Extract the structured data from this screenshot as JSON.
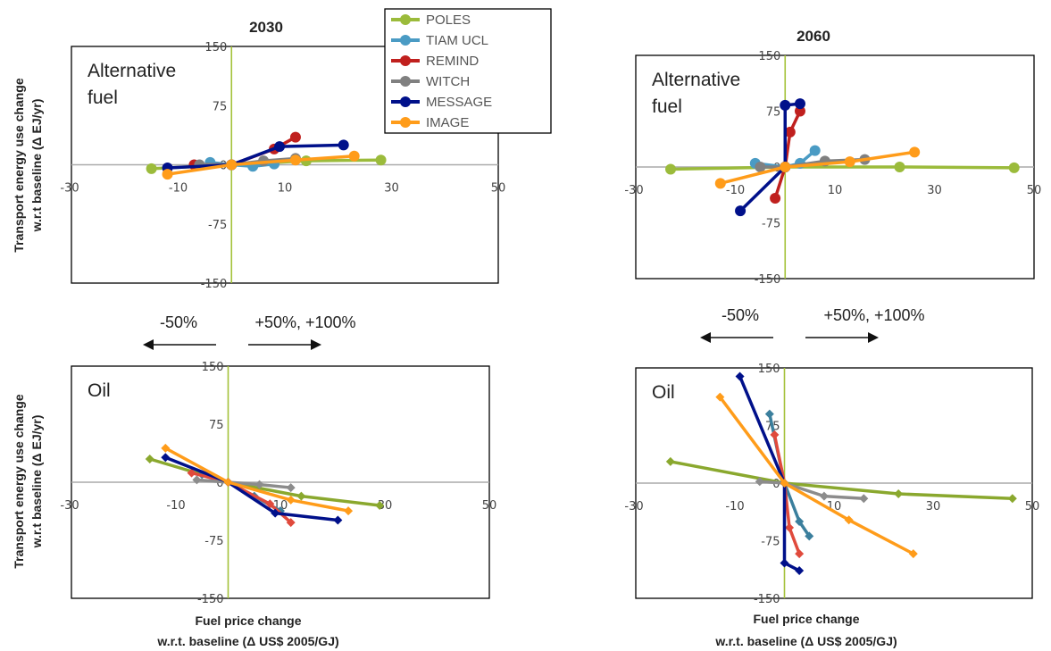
{
  "figure": {
    "ylabel_line1": "Transport energy use change",
    "ylabel_line2": "w.r.t baseline (Δ EJ/yr)",
    "xlabel_line1": "Fuel price change",
    "xlabel_line2": "w.r.t. baseline (Δ US$ 2005/GJ)",
    "arrow_left": "-50%",
    "arrow_right": "+50%, +100%"
  },
  "legend": [
    {
      "name": "POLES",
      "color": "#9bbb3b"
    },
    {
      "name": "TIAM UCL",
      "color": "#4a9bc4"
    },
    {
      "name": "REMIND",
      "color": "#c0201e"
    },
    {
      "name": "WITCH",
      "color": "#808080"
    },
    {
      "name": "MESSAGE",
      "color": "#00108a"
    },
    {
      "name": "IMAGE",
      "color": "#ff9c1a"
    }
  ],
  "colors_oil": {
    "POLES": "#8aa82e",
    "TIAM UCL": "#3b7f9d",
    "REMIND": "#e04a3c",
    "WITCH": "#8c8c8c",
    "MESSAGE": "#00108a",
    "IMAGE": "#ff9c1a"
  },
  "chart_data": [
    {
      "id": "c2030alt",
      "type": "line",
      "title": "2030",
      "panel_label": "Alternative fuel",
      "xlim": [
        -30,
        50
      ],
      "ylim": [
        -150,
        150
      ],
      "xticks": [
        "-30",
        "-10",
        "10",
        "30",
        "50"
      ],
      "yticks": [
        "150",
        "75",
        "0",
        "-75",
        "-150"
      ],
      "marker": "circle",
      "series": [
        {
          "name": "POLES",
          "points": [
            [
              -15,
              -5
            ],
            [
              0,
              0
            ],
            [
              14,
              5
            ],
            [
              28,
              6
            ]
          ]
        },
        {
          "name": "TIAM UCL",
          "points": [
            [
              -4,
              3
            ],
            [
              0,
              0
            ],
            [
              4,
              -2
            ],
            [
              8,
              1
            ]
          ]
        },
        {
          "name": "REMIND",
          "points": [
            [
              -7,
              0
            ],
            [
              0,
              0
            ],
            [
              8,
              20
            ],
            [
              12,
              35
            ]
          ]
        },
        {
          "name": "WITCH",
          "points": [
            [
              -6,
              0
            ],
            [
              0,
              0
            ],
            [
              6,
              5
            ],
            [
              12,
              8
            ]
          ]
        },
        {
          "name": "MESSAGE",
          "points": [
            [
              -12,
              -4
            ],
            [
              0,
              0
            ],
            [
              9,
              23
            ],
            [
              21,
              25
            ]
          ]
        },
        {
          "name": "IMAGE",
          "points": [
            [
              -12,
              -12
            ],
            [
              0,
              0
            ],
            [
              12,
              6
            ],
            [
              23,
              11
            ]
          ]
        }
      ]
    },
    {
      "id": "c2060alt",
      "type": "line",
      "title": "2060",
      "panel_label": "Alternative fuel",
      "xlim": [
        -30,
        50
      ],
      "ylim": [
        -150,
        150
      ],
      "xticks": [
        "-30",
        "-10",
        "10",
        "30",
        "50"
      ],
      "yticks": [
        "150",
        "75",
        "0",
        "-75",
        "-150"
      ],
      "marker": "circle",
      "series": [
        {
          "name": "POLES",
          "points": [
            [
              -23,
              -3
            ],
            [
              0,
              0
            ],
            [
              23,
              0
            ],
            [
              46,
              -1
            ]
          ]
        },
        {
          "name": "TIAM UCL",
          "points": [
            [
              -6,
              5
            ],
            [
              0,
              0
            ],
            [
              3,
              5
            ],
            [
              6,
              22
            ]
          ]
        },
        {
          "name": "REMIND",
          "points": [
            [
              -2,
              -42
            ],
            [
              0,
              0
            ],
            [
              1,
              47
            ],
            [
              3,
              75
            ]
          ]
        },
        {
          "name": "WITCH",
          "points": [
            [
              -5,
              0
            ],
            [
              0,
              0
            ],
            [
              8,
              8
            ],
            [
              16,
              10
            ]
          ]
        },
        {
          "name": "MESSAGE",
          "points": [
            [
              -9,
              -59
            ],
            [
              0,
              0
            ],
            [
              0,
              83
            ],
            [
              3,
              85
            ]
          ]
        },
        {
          "name": "IMAGE",
          "points": [
            [
              -13,
              -22
            ],
            [
              0,
              0
            ],
            [
              13,
              7
            ],
            [
              26,
              20
            ]
          ]
        }
      ]
    },
    {
      "id": "c2030oil",
      "type": "line",
      "title": "",
      "panel_label": "Oil",
      "xlim": [
        -30,
        50
      ],
      "ylim": [
        -150,
        150
      ],
      "xticks": [
        "-30",
        "-10",
        "10",
        "30",
        "50"
      ],
      "yticks": [
        "150",
        "75",
        "0",
        "-75",
        "-150"
      ],
      "marker": "diamond",
      "series": [
        {
          "name": "POLES",
          "points": [
            [
              -15,
              30
            ],
            [
              0,
              0
            ],
            [
              14,
              -18
            ],
            [
              29,
              -30
            ]
          ]
        },
        {
          "name": "TIAM UCL",
          "points": [
            [
              -5,
              10
            ],
            [
              0,
              0
            ],
            [
              5,
              -18
            ],
            [
              10,
              -37
            ]
          ]
        },
        {
          "name": "REMIND",
          "points": [
            [
              -7,
              12
            ],
            [
              0,
              0
            ],
            [
              8,
              -28
            ],
            [
              12,
              -52
            ]
          ]
        },
        {
          "name": "WITCH",
          "points": [
            [
              -6,
              3
            ],
            [
              0,
              0
            ],
            [
              6,
              -3
            ],
            [
              12,
              -7
            ]
          ]
        },
        {
          "name": "MESSAGE",
          "points": [
            [
              -12,
              32
            ],
            [
              0,
              0
            ],
            [
              9,
              -40
            ],
            [
              21,
              -49
            ]
          ]
        },
        {
          "name": "IMAGE",
          "points": [
            [
              -12,
              44
            ],
            [
              0,
              0
            ],
            [
              12,
              -23
            ],
            [
              23,
              -37
            ]
          ]
        }
      ]
    },
    {
      "id": "c2060oil",
      "type": "line",
      "title": "",
      "panel_label": "Oil",
      "xlim": [
        -30,
        50
      ],
      "ylim": [
        -150,
        150
      ],
      "xticks": [
        "-30",
        "-10",
        "10",
        "30",
        "50"
      ],
      "yticks": [
        "150",
        "75",
        "0",
        "-75",
        "-150"
      ],
      "marker": "diamond",
      "series": [
        {
          "name": "POLES",
          "points": [
            [
              -23,
              28
            ],
            [
              0,
              0
            ],
            [
              23,
              -14
            ],
            [
              46,
              -20
            ]
          ]
        },
        {
          "name": "TIAM UCL",
          "points": [
            [
              -3,
              90
            ],
            [
              0,
              0
            ],
            [
              3,
              -50
            ],
            [
              5,
              -69
            ]
          ]
        },
        {
          "name": "REMIND",
          "points": [
            [
              -2,
              63
            ],
            [
              0,
              0
            ],
            [
              1,
              -58
            ],
            [
              3,
              -92
            ]
          ]
        },
        {
          "name": "WITCH",
          "points": [
            [
              -5,
              2
            ],
            [
              0,
              0
            ],
            [
              8,
              -17
            ],
            [
              16,
              -20
            ]
          ]
        },
        {
          "name": "MESSAGE",
          "points": [
            [
              -9,
              139
            ],
            [
              0,
              0
            ],
            [
              0,
              -104
            ],
            [
              3,
              -114
            ]
          ]
        },
        {
          "name": "IMAGE",
          "points": [
            [
              -13,
              112
            ],
            [
              0,
              0
            ],
            [
              13,
              -48
            ],
            [
              26,
              -92
            ]
          ]
        }
      ]
    }
  ]
}
